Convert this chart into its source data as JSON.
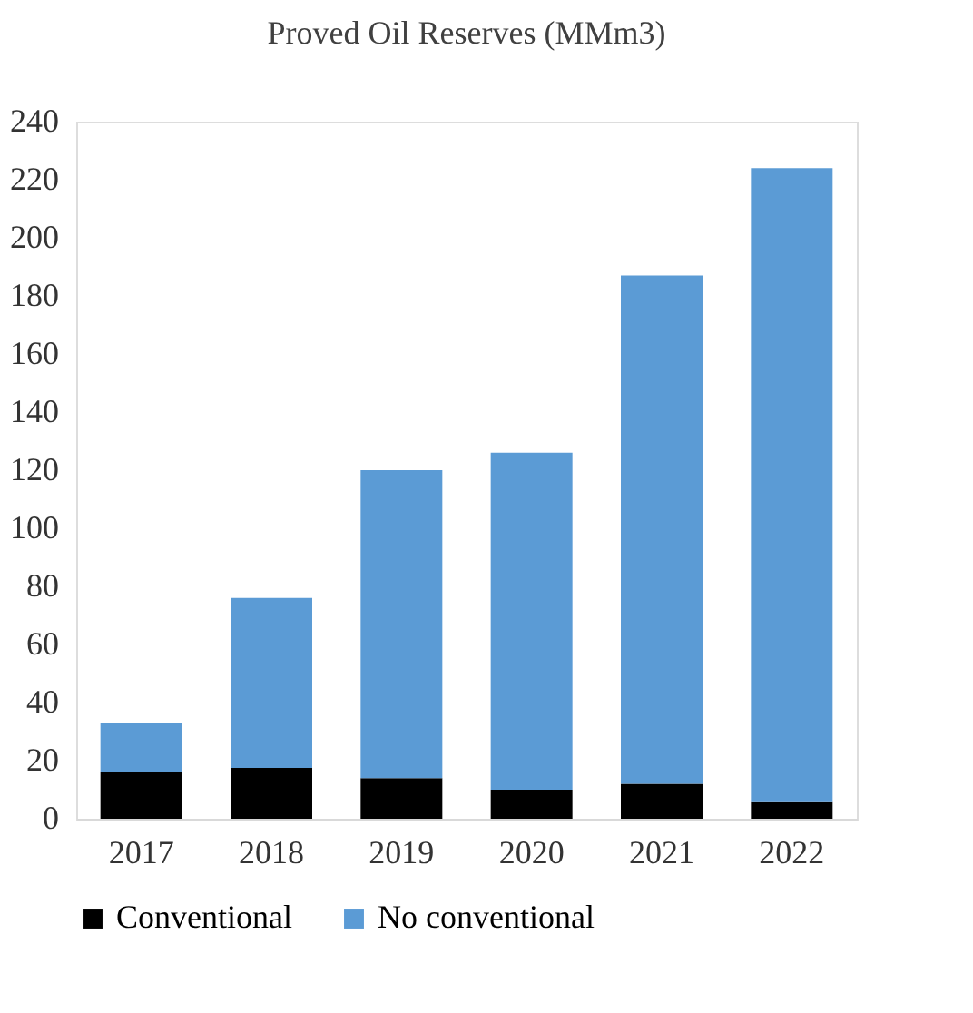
{
  "chart_data": {
    "type": "bar",
    "title": "Proved Oil Reserves (MMm3)",
    "categories": [
      "2017",
      "2018",
      "2019",
      "2020",
      "2021",
      "2022"
    ],
    "series": [
      {
        "name": "Conventional",
        "color": "#000000",
        "values": [
          16,
          17.5,
          14,
          10,
          12,
          6
        ]
      },
      {
        "name": "No conventional",
        "color": "#5b9bd5",
        "values": [
          17,
          58.5,
          106,
          116,
          175,
          218
        ]
      }
    ],
    "stacked": true,
    "ylim": [
      0,
      240
    ],
    "yticks": [
      0,
      20,
      40,
      60,
      80,
      100,
      120,
      140,
      160,
      180,
      200,
      220,
      240
    ],
    "grid": false,
    "legend": "bottom"
  }
}
